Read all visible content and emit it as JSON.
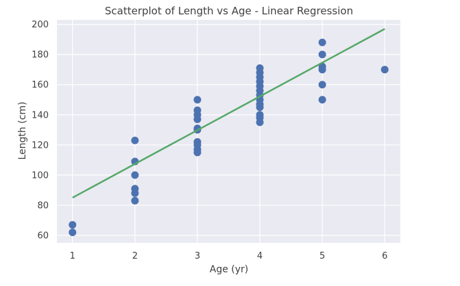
{
  "chart_data": {
    "type": "scatter",
    "title": "Scatterplot of Length vs Age - Linear Regression",
    "xlabel": "Age (yr)",
    "ylabel": "Length (cm)",
    "xlim": [
      0.75,
      6.25
    ],
    "ylim": [
      55,
      203
    ],
    "xticks": [
      1,
      2,
      3,
      4,
      5,
      6
    ],
    "yticks": [
      60,
      80,
      100,
      120,
      140,
      160,
      180,
      200
    ],
    "grid": true,
    "legend": "none",
    "colors": {
      "points": "#4c72b0",
      "line": "#55a868",
      "background": "#eaeaf2",
      "grid": "#ffffff"
    },
    "series": [
      {
        "kind": "scatter",
        "points": [
          [
            1,
            67
          ],
          [
            1,
            62
          ],
          [
            2,
            123
          ],
          [
            2,
            109
          ],
          [
            2,
            100
          ],
          [
            2,
            91
          ],
          [
            2,
            88
          ],
          [
            2,
            83
          ],
          [
            3,
            150
          ],
          [
            3,
            143
          ],
          [
            3,
            140
          ],
          [
            3,
            137
          ],
          [
            3,
            131
          ],
          [
            3,
            130
          ],
          [
            3,
            122
          ],
          [
            3,
            120
          ],
          [
            3,
            117
          ],
          [
            3,
            115
          ],
          [
            4,
            171
          ],
          [
            4,
            168
          ],
          [
            4,
            165
          ],
          [
            4,
            162
          ],
          [
            4,
            159
          ],
          [
            4,
            156
          ],
          [
            4,
            153
          ],
          [
            4,
            150
          ],
          [
            4,
            147
          ],
          [
            4,
            145
          ],
          [
            4,
            140
          ],
          [
            4,
            138
          ],
          [
            4,
            135
          ],
          [
            5,
            188
          ],
          [
            5,
            180
          ],
          [
            5,
            172
          ],
          [
            5,
            170
          ],
          [
            5,
            160
          ],
          [
            5,
            150
          ],
          [
            6,
            170
          ]
        ]
      },
      {
        "kind": "line",
        "points": [
          [
            1,
            85
          ],
          [
            6,
            197
          ]
        ]
      }
    ]
  }
}
